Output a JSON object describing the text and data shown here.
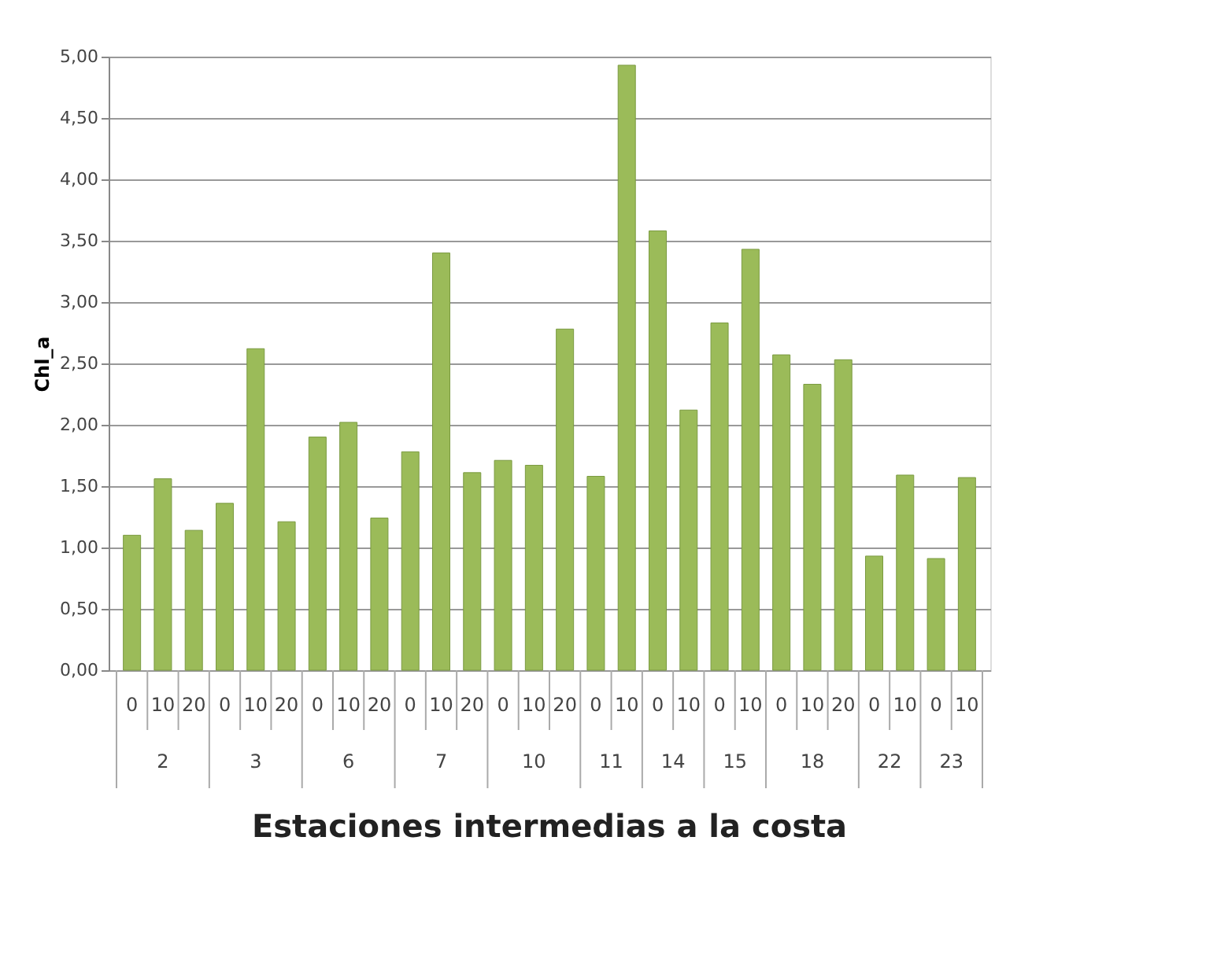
{
  "chart_data": {
    "type": "bar",
    "xlabel": "Estaciones intermedias a la costa",
    "ylabel": "Chl_a",
    "categories": [
      "0",
      "10",
      "20",
      "0",
      "10",
      "20",
      "0",
      "10",
      "20",
      "0",
      "10",
      "20",
      "0",
      "10",
      "20",
      "0",
      "10",
      "0",
      "10",
      "0",
      "10",
      "0",
      "10",
      "20",
      "0",
      "10",
      "0",
      "10"
    ],
    "values": [
      1.1,
      1.56,
      1.14,
      1.36,
      2.62,
      1.21,
      1.9,
      2.02,
      1.24,
      1.78,
      3.4,
      1.61,
      1.71,
      1.67,
      2.78,
      1.58,
      4.93,
      3.58,
      2.12,
      2.83,
      3.43,
      2.57,
      2.33,
      2.53,
      0.93,
      1.59,
      0.91,
      1.57
    ],
    "color": "#9bbb59",
    "annotations": [
      "2",
      "3",
      "6",
      "7",
      "10",
      "11",
      "14",
      "15",
      "18",
      "22",
      "23"
    ],
    "ylim": [
      0,
      5
    ],
    "yticks": [
      {
        "value": 0,
        "label": "0,00"
      },
      {
        "value": 0.5,
        "label": "0,50"
      },
      {
        "value": 1,
        "label": "1,00"
      },
      {
        "value": 1.5,
        "label": "1,50"
      },
      {
        "value": 2,
        "label": "2,00"
      },
      {
        "value": 2.5,
        "label": "2,50"
      },
      {
        "value": 3,
        "label": "3,00"
      },
      {
        "value": 3.5,
        "label": "3,50"
      },
      {
        "value": 4,
        "label": "4,00"
      },
      {
        "value": 4.5,
        "label": "4,50"
      },
      {
        "value": 5,
        "label": "5,00"
      }
    ],
    "grid": "y"
  }
}
